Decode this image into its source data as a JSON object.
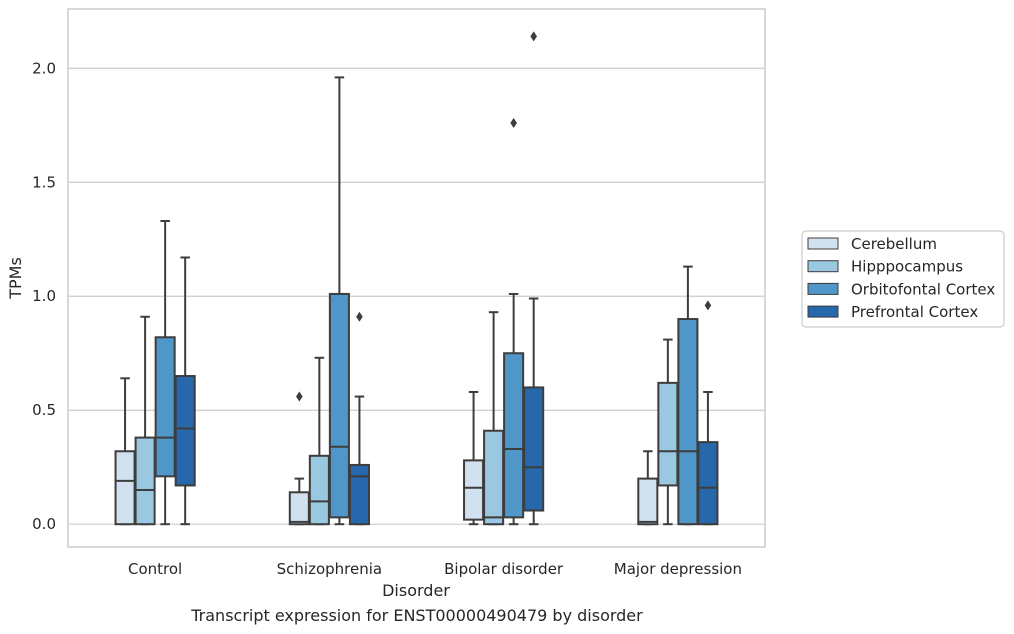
{
  "caption": "Transcript expression for ENST00000490479 by disorder",
  "chart_data": {
    "type": "box",
    "xlabel": "Disorder",
    "ylabel": "TPMs",
    "ylim": [
      -0.1,
      2.26
    ],
    "yticks": [
      0.0,
      0.5,
      1.0,
      1.5,
      2.0
    ],
    "ytick_labels": [
      "0.0",
      "0.5",
      "1.0",
      "1.5",
      "2.0"
    ],
    "grid": "horizontal",
    "legend_position": "right",
    "categories": [
      "Control",
      "Schizophrenia",
      "Bipolar disorder",
      "Major depression"
    ],
    "series": [
      {
        "name": "Cerebellum",
        "color": "#d2e1f0",
        "boxes": [
          {
            "whislo": 0.0,
            "q1": 0.0,
            "med": 0.19,
            "q3": 0.32,
            "whishi": 0.64,
            "fliers": []
          },
          {
            "whislo": 0.0,
            "q1": 0.0,
            "med": 0.01,
            "q3": 0.14,
            "whishi": 0.2,
            "fliers": [
              0.56
            ]
          },
          {
            "whislo": 0.0,
            "q1": 0.02,
            "med": 0.16,
            "q3": 0.28,
            "whishi": 0.58,
            "fliers": []
          },
          {
            "whislo": 0.0,
            "q1": 0.0,
            "med": 0.01,
            "q3": 0.2,
            "whishi": 0.32,
            "fliers": []
          }
        ]
      },
      {
        "name": "Hipppocampus",
        "color": "#9ac8e0",
        "boxes": [
          {
            "whislo": 0.0,
            "q1": 0.0,
            "med": 0.15,
            "q3": 0.38,
            "whishi": 0.91,
            "fliers": []
          },
          {
            "whislo": 0.0,
            "q1": 0.0,
            "med": 0.1,
            "q3": 0.3,
            "whishi": 0.73,
            "fliers": []
          },
          {
            "whislo": 0.0,
            "q1": 0.0,
            "med": 0.03,
            "q3": 0.41,
            "whishi": 0.93,
            "fliers": []
          },
          {
            "whislo": 0.0,
            "q1": 0.17,
            "med": 0.32,
            "q3": 0.62,
            "whishi": 0.81,
            "fliers": []
          }
        ]
      },
      {
        "name": "Orbitofontal Cortex",
        "color": "#5097c9",
        "boxes": [
          {
            "whislo": 0.0,
            "q1": 0.21,
            "med": 0.38,
            "q3": 0.82,
            "whishi": 1.33,
            "fliers": []
          },
          {
            "whislo": 0.0,
            "q1": 0.03,
            "med": 0.34,
            "q3": 1.01,
            "whishi": 1.96,
            "fliers": []
          },
          {
            "whislo": 0.0,
            "q1": 0.03,
            "med": 0.33,
            "q3": 0.75,
            "whishi": 1.01,
            "fliers": [
              1.76
            ]
          },
          {
            "whislo": 0.0,
            "q1": 0.0,
            "med": 0.32,
            "q3": 0.9,
            "whishi": 1.13,
            "fliers": []
          }
        ]
      },
      {
        "name": "Prefrontal Cortex",
        "color": "#2767ab",
        "boxes": [
          {
            "whislo": 0.0,
            "q1": 0.17,
            "med": 0.42,
            "q3": 0.65,
            "whishi": 1.17,
            "fliers": []
          },
          {
            "whislo": 0.0,
            "q1": 0.0,
            "med": 0.21,
            "q3": 0.26,
            "whishi": 0.56,
            "fliers": [
              0.91
            ]
          },
          {
            "whislo": 0.0,
            "q1": 0.06,
            "med": 0.25,
            "q3": 0.6,
            "whishi": 0.99,
            "fliers": [
              2.14
            ]
          },
          {
            "whislo": 0.0,
            "q1": 0.0,
            "med": 0.16,
            "q3": 0.36,
            "whishi": 0.58,
            "fliers": [
              0.96
            ]
          }
        ]
      }
    ]
  }
}
